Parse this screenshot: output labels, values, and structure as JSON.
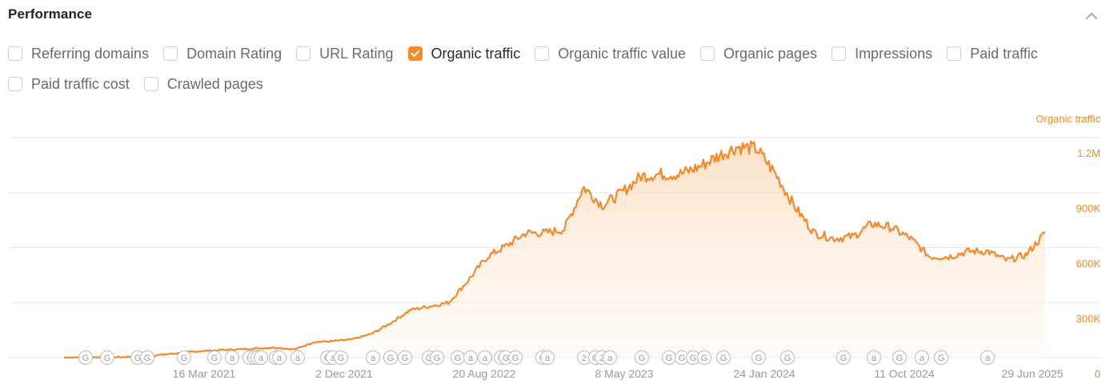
{
  "header": {
    "title": "Performance",
    "collapse_icon": "chevron-up-icon"
  },
  "filters": {
    "row1": [
      {
        "label": "Referring domains",
        "checked": false
      },
      {
        "label": "Domain Rating",
        "checked": false
      },
      {
        "label": "URL Rating",
        "checked": false
      },
      {
        "label": "Organic traffic",
        "checked": true
      },
      {
        "label": "Organic traffic value",
        "checked": false
      },
      {
        "label": "Organic pages",
        "checked": false
      },
      {
        "label": "Impressions",
        "checked": false
      },
      {
        "label": "Paid traffic",
        "checked": false
      }
    ],
    "row2": [
      {
        "label": "Paid traffic cost",
        "checked": false
      },
      {
        "label": "Crawled pages",
        "checked": false
      }
    ]
  },
  "colors": {
    "accent": "#f58b2a",
    "line": "#f7882a",
    "axis_text": "#f08a24",
    "date_text": "#9a9a9a",
    "grid": "#e8e8e8"
  },
  "chart_data": {
    "type": "area",
    "title": "Performance",
    "series_label": "Organic traffic",
    "ylabel": "Organic traffic",
    "xlabel": "",
    "ylim": [
      0,
      1200000
    ],
    "y_ticks": [
      "0",
      "300K",
      "600K",
      "900K",
      "1.2M"
    ],
    "x_ticks": [
      "16 Mar 2021",
      "2 Dec 2021",
      "20 Aug 2022",
      "8 May 2023",
      "24 Jan 2024",
      "11 Oct 2024",
      "29 Jun 2025"
    ],
    "grid": true,
    "legend_position": "top-right",
    "series": [
      {
        "name": "Organic traffic",
        "x": [
          "Jul 2020",
          "Sep 2020",
          "Nov 2020",
          "Jan 2021",
          "Mar 2021",
          "May 2021",
          "Jul 2021",
          "Sep 2021",
          "Nov 2021",
          "Dec 2021",
          "Jan 2022",
          "Feb 2022",
          "Mar 2022",
          "Apr 2022",
          "May 2022",
          "Jun 2022",
          "Jul 2022",
          "Aug 2022",
          "Sep 2022",
          "Oct 2022",
          "Nov 2022",
          "Dec 2022",
          "Jan 2023",
          "Feb 2023",
          "Mar 2023",
          "Apr 2023",
          "May 2023",
          "Jun 2023",
          "Jul 2023",
          "Aug 2023",
          "Sep 2023",
          "Oct 2023",
          "Nov 2023",
          "Dec 2023",
          "Jan 2024",
          "Feb 2024",
          "Mar 2024",
          "Apr 2024",
          "May 2024",
          "Jun 2024",
          "Jul 2024",
          "Aug 2024",
          "Sep 2024",
          "Oct 2024",
          "Nov 2024",
          "Dec 2024",
          "Jan 2025",
          "Feb 2025",
          "Mar 2025",
          "Apr 2025",
          "May 2025",
          "Jun 2025"
        ],
        "values": [
          0,
          0,
          2000,
          3000,
          8000,
          15000,
          25000,
          35000,
          40000,
          45000,
          50000,
          55000,
          45000,
          85000,
          90000,
          100000,
          130000,
          190000,
          260000,
          280000,
          300000,
          420000,
          550000,
          610000,
          680000,
          680000,
          700000,
          930000,
          830000,
          900000,
          990000,
          1000000,
          1000000,
          1040000,
          1100000,
          1150000,
          1140000,
          1000000,
          820000,
          680000,
          650000,
          660000,
          730000,
          710000,
          650000,
          550000,
          550000,
          580000,
          580000,
          530000,
          560000,
          680000
        ]
      }
    ],
    "events": {
      "markers": [
        "G",
        "G",
        "G",
        "G",
        "G",
        "G",
        "a",
        "G",
        "a",
        "G",
        "a",
        "G",
        "a",
        "a",
        "G",
        "a",
        "G",
        "a",
        "G",
        "G",
        "G",
        "G",
        "G",
        "a",
        "a",
        "G",
        "G",
        "G",
        "G",
        "a",
        "2",
        "G",
        "2",
        "a",
        "G",
        "G",
        "G"
      ]
    }
  }
}
